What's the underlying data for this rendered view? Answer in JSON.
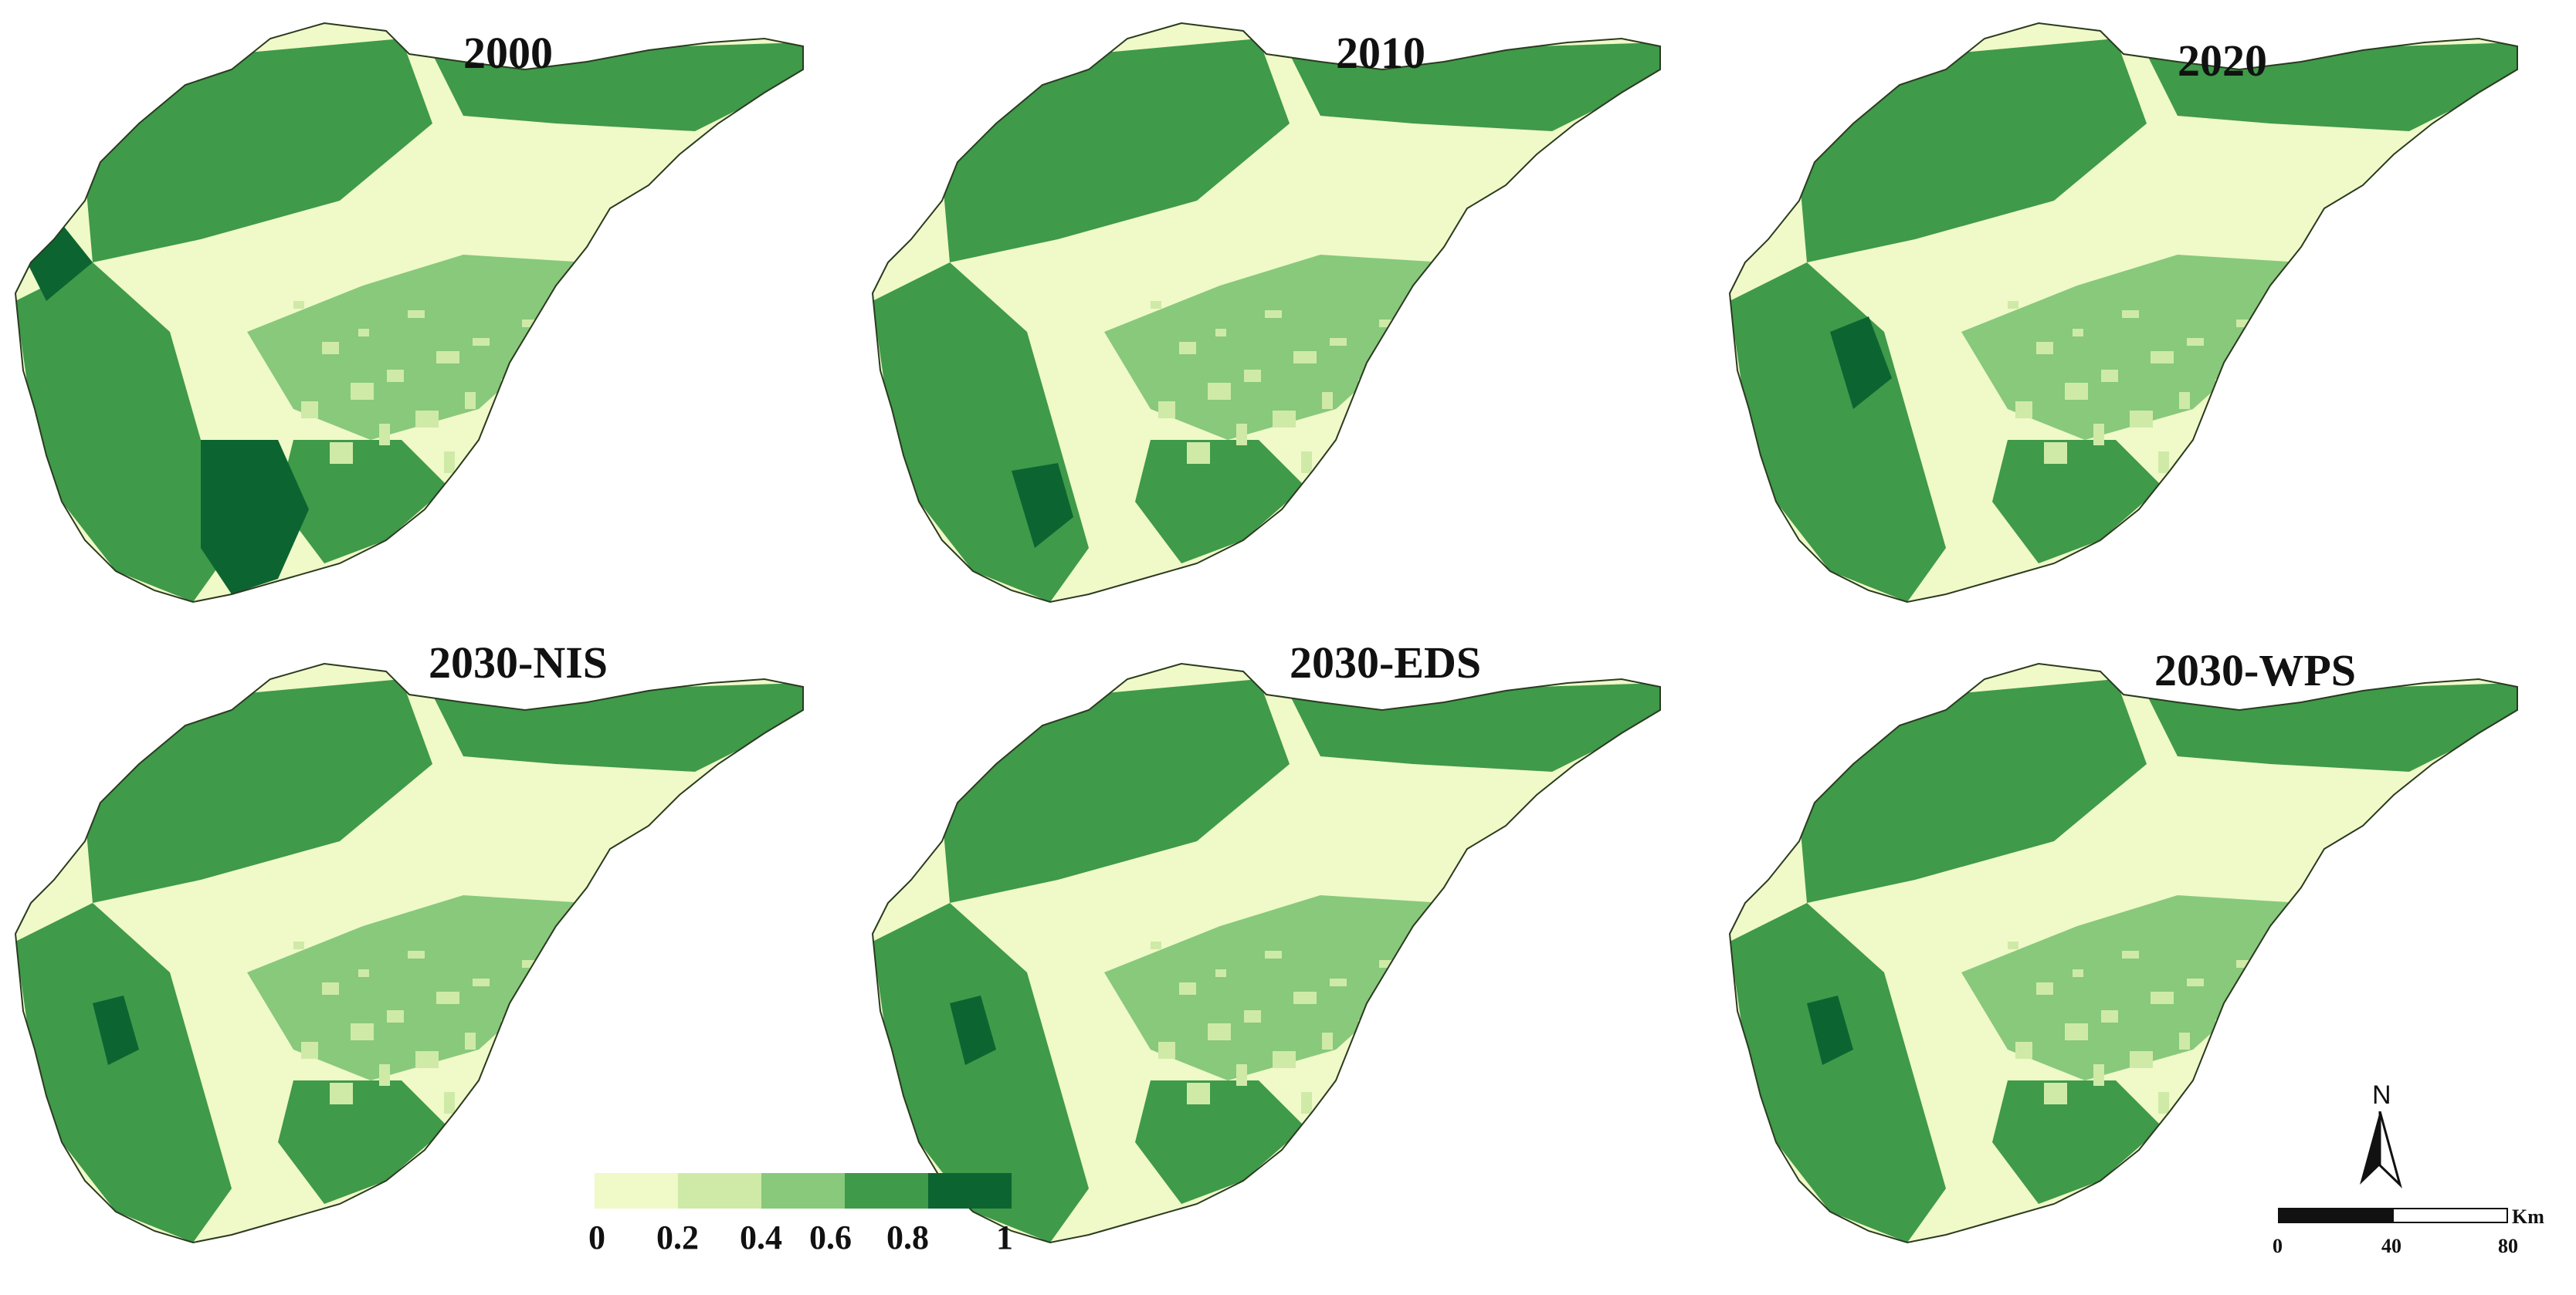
{
  "colors": {
    "class_0_0_2": "#f0f9c8",
    "class_0_2_0_4": "#cfeaa7",
    "class_0_4_0_6": "#88c97c",
    "class_0_6_0_8": "#3f9a4a",
    "class_0_8_1": "#0c6531"
  },
  "panels": [
    {
      "title": "2000"
    },
    {
      "title": "2010"
    },
    {
      "title": "2020"
    },
    {
      "title": "2030-NIS"
    },
    {
      "title": "2030-EDS"
    },
    {
      "title": "2030-WPS"
    }
  ],
  "legend": {
    "ticks": [
      "0",
      "0.2",
      "0.4",
      "0.6",
      "0.8",
      "1"
    ],
    "breaks": [
      0,
      0.2,
      0.4,
      0.6,
      0.8,
      1
    ]
  },
  "north_arrow": {
    "label": "N",
    "icon": "north-arrow-icon"
  },
  "scale_bar": {
    "unit": "Km",
    "ticks": [
      "0",
      "40",
      "80"
    ]
  }
}
